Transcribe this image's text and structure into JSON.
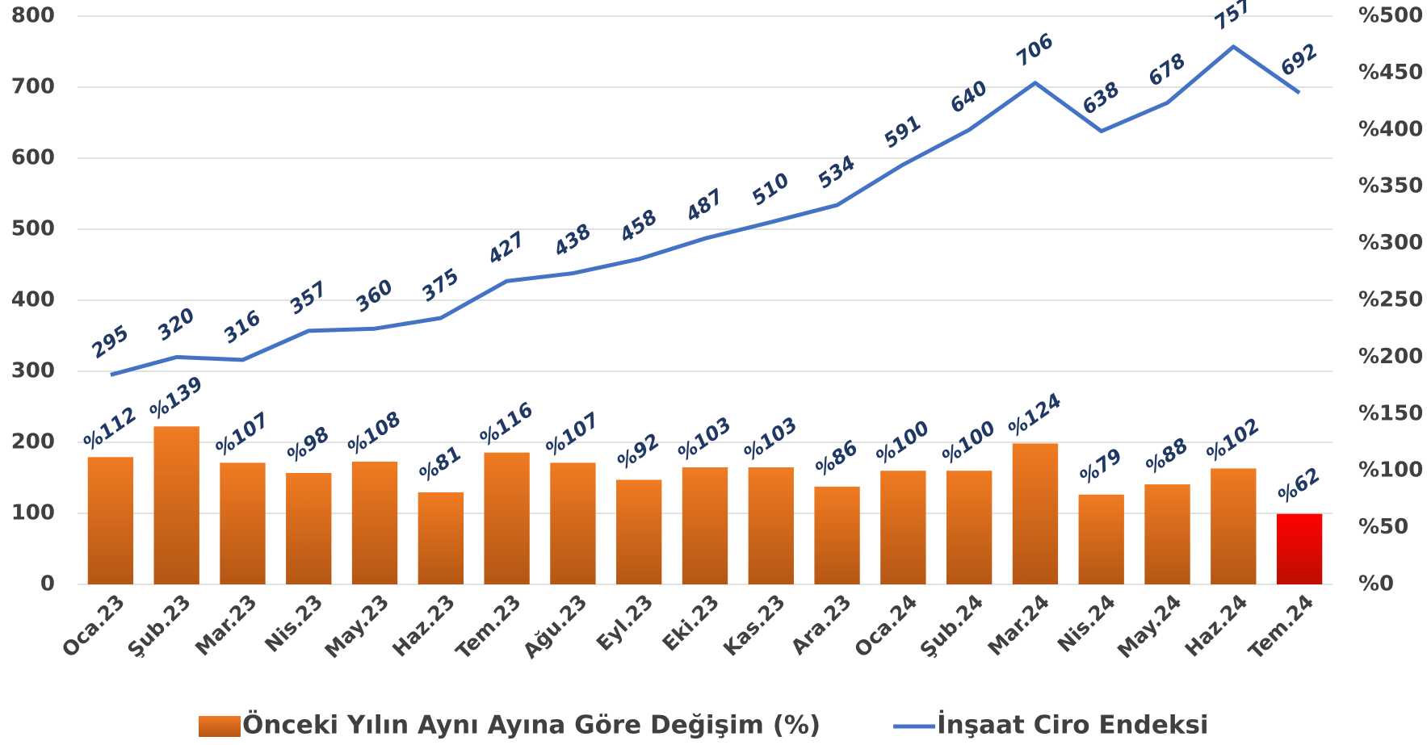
{
  "chart_data": {
    "type": "bar_line",
    "categories": [
      "Oca.23",
      "Şub.23",
      "Mar.23",
      "Nis.23",
      "May.23",
      "Haz.23",
      "Tem.23",
      "Ağu.23",
      "Eyl.23",
      "Eki.23",
      "Kas.23",
      "Ara.23",
      "Oca.24",
      "Şub.24",
      "Mar.24",
      "Nis.24",
      "May.24",
      "Haz.24",
      "Tem.24"
    ],
    "series": [
      {
        "name": "Önceki Yılın Aynı Ayına Göre Değişim (%)",
        "type": "bar",
        "axis": "y2",
        "color": "#f07b22",
        "colors": [
          "#f07b22",
          "#f07b22",
          "#f07b22",
          "#f07b22",
          "#f07b22",
          "#f07b22",
          "#f07b22",
          "#f07b22",
          "#f07b22",
          "#f07b22",
          "#f07b22",
          "#f07b22",
          "#f07b22",
          "#f07b22",
          "#f07b22",
          "#f07b22",
          "#f07b22",
          "#f07b22",
          "#ff0000"
        ],
        "values": [
          112,
          139,
          107,
          98,
          108,
          81,
          116,
          107,
          92,
          103,
          103,
          86,
          100,
          100,
          124,
          79,
          88,
          102,
          62
        ],
        "value_labels": [
          "%112",
          "%139",
          "%107",
          "%98",
          "%108",
          "%81",
          "%116",
          "%107",
          "%92",
          "%103",
          "%103",
          "%86",
          "%100",
          "%100",
          "%124",
          "%79",
          "%88",
          "%102",
          "%62"
        ]
      },
      {
        "name": "İnşaat Ciro Endeksi",
        "type": "line",
        "axis": "y",
        "color": "#4472c4",
        "values": [
          295,
          320,
          316,
          357,
          360,
          375,
          427,
          438,
          458,
          487,
          510,
          534,
          591,
          640,
          706,
          638,
          678,
          757,
          692
        ]
      }
    ],
    "ylim": [
      0,
      800
    ],
    "yticks": [
      0,
      100,
      200,
      300,
      400,
      500,
      600,
      700,
      800
    ],
    "y2lim": [
      0,
      500
    ],
    "y2ticks": [
      {
        "value": 0,
        "label": "%0"
      },
      {
        "value": 50,
        "label": "%50"
      },
      {
        "value": 100,
        "label": "%100"
      },
      {
        "value": 150,
        "label": "%150"
      },
      {
        "value": 200,
        "label": "%200"
      },
      {
        "value": 250,
        "label": "%250"
      },
      {
        "value": 300,
        "label": "%300"
      },
      {
        "value": 350,
        "label": "%350"
      },
      {
        "value": 400,
        "label": "%400"
      },
      {
        "value": 450,
        "label": "%450"
      },
      {
        "value": 500,
        "label": "%500"
      }
    ],
    "grid": true,
    "legend": "bottom"
  }
}
